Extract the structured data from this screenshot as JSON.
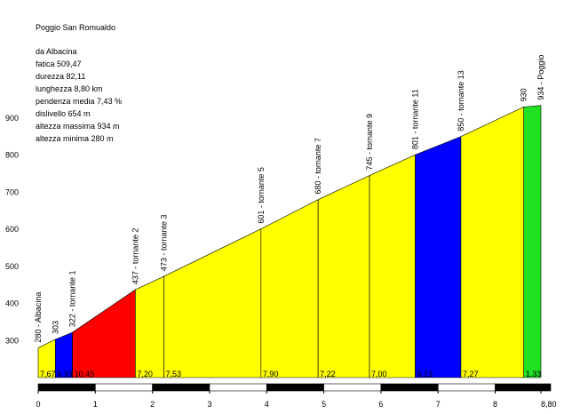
{
  "chart_data": {
    "type": "profile",
    "title": "Poggio San Romualdo",
    "info": [
      "da Albacina",
      "fatica 509,47",
      "durezza 82,11",
      "lunghezza 8,80 km",
      "pendenza media 7,43 %",
      "dislivello 654 m",
      "altezza massima 934 m",
      "altezza minima 280 m"
    ],
    "x": [
      0,
      0.3,
      0.6,
      1.7,
      2.2,
      3.9,
      4.9,
      5.8,
      6.6,
      7.4,
      8.5,
      8.8
    ],
    "values": [
      280,
      303,
      322,
      437,
      473,
      601,
      680,
      745,
      801,
      850,
      930,
      934
    ],
    "point_labels": [
      "280 - Albacina",
      "303",
      "322 - tornante 1",
      "437 - tornante 2",
      "473 - tornante 3",
      "601 - tornante 5",
      "680 - tornante 7",
      "745 - tornante 9",
      "801 - tornante 11",
      "850 - tornante 13",
      "930",
      "934 - Poggio"
    ],
    "segment_labels": [
      "7,67",
      "6,33",
      "10,45",
      "7,20",
      "7,53",
      "7,90",
      "7,22",
      "7,00",
      "6,13",
      "7,27",
      "1,33"
    ],
    "segment_colors": [
      "#ffff00",
      "#0000ff",
      "#ff0000",
      "#ffff00",
      "#ffff00",
      "#ffff00",
      "#ffff00",
      "#ffff00",
      "#0000ff",
      "#ffff00",
      "#22e022"
    ],
    "xlim": [
      0,
      8.8
    ],
    "xticks": [
      0,
      1,
      2,
      3,
      4,
      5,
      6,
      7,
      8,
      {
        "value": 8.8,
        "label": "8,80"
      }
    ],
    "ylim": [
      200,
      950
    ],
    "yticks": [
      300,
      400,
      500,
      600,
      700,
      800,
      900
    ]
  }
}
